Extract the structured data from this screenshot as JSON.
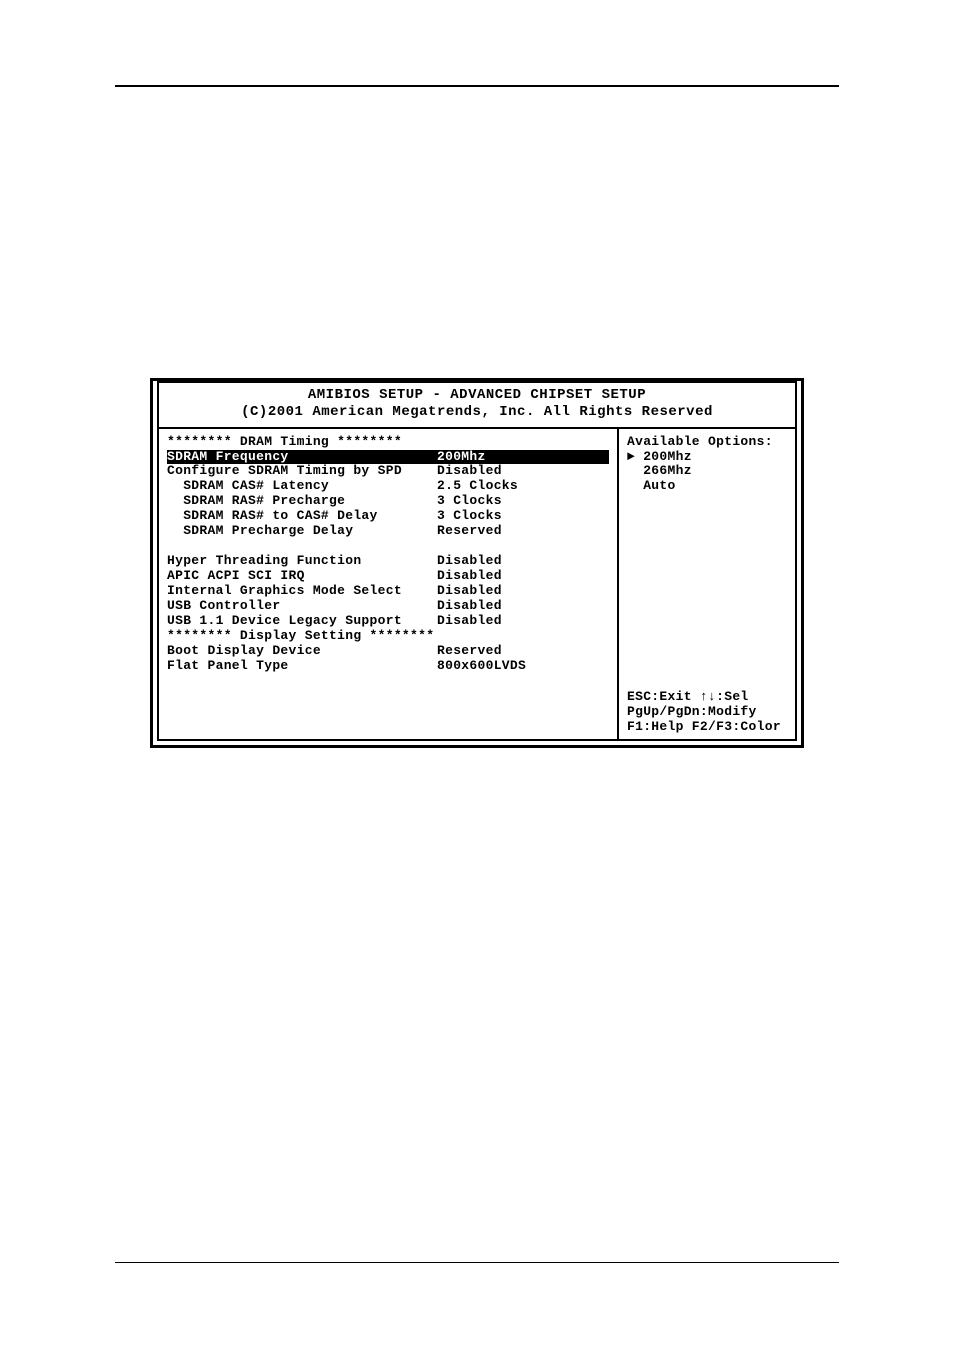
{
  "header": {
    "title": "AMIBIOS SETUP - ADVANCED CHIPSET SETUP",
    "copyright": "(C)2001 American Megatrends, Inc. All Rights Reserved"
  },
  "sections": {
    "dram_timing_header": "******** DRAM Timing ********",
    "display_setting_header": "******** Display Setting ********"
  },
  "settings": [
    {
      "label": "SDRAM Frequency",
      "value": "200Mhz",
      "highlighted": true,
      "indent": 0
    },
    {
      "label": "Configure SDRAM Timing by SPD",
      "value": "Disabled",
      "highlighted": false,
      "indent": 0
    },
    {
      "label": "SDRAM CAS# Latency",
      "value": "2.5 Clocks",
      "highlighted": false,
      "indent": 2
    },
    {
      "label": "SDRAM RAS# Precharge",
      "value": "3 Clocks",
      "highlighted": false,
      "indent": 2
    },
    {
      "label": "SDRAM RAS# to CAS# Delay",
      "value": "3 Clocks",
      "highlighted": false,
      "indent": 2
    },
    {
      "label": "SDRAM Precharge Delay",
      "value": "Reserved",
      "highlighted": false,
      "indent": 2
    }
  ],
  "settings2": [
    {
      "label": "Hyper Threading Function",
      "value": "Disabled",
      "indent": 0
    },
    {
      "label": "APIC ACPI SCI IRQ",
      "value": "Disabled",
      "indent": 0
    },
    {
      "label": "Internal Graphics Mode Select",
      "value": "Disabled",
      "indent": 0
    },
    {
      "label": "USB Controller",
      "value": "Disabled",
      "indent": 0
    },
    {
      "label": "USB 1.1 Device Legacy Support",
      "value": "Disabled",
      "indent": 0
    }
  ],
  "settings3": [
    {
      "label": "Boot Display Device",
      "value": "Reserved",
      "indent": 0
    },
    {
      "label": "Flat Panel Type",
      "value": "800x600LVDS",
      "indent": 0
    }
  ],
  "options": {
    "title": "Available Options:",
    "items": [
      "200Mhz",
      "266Mhz",
      "Auto"
    ],
    "selected_index": 0,
    "marker": "►"
  },
  "help": {
    "line1": "ESC:Exit  ↑↓:Sel",
    "line2": "PgUp/PgDn:Modify",
    "line3": "F1:Help F2/F3:Color"
  }
}
